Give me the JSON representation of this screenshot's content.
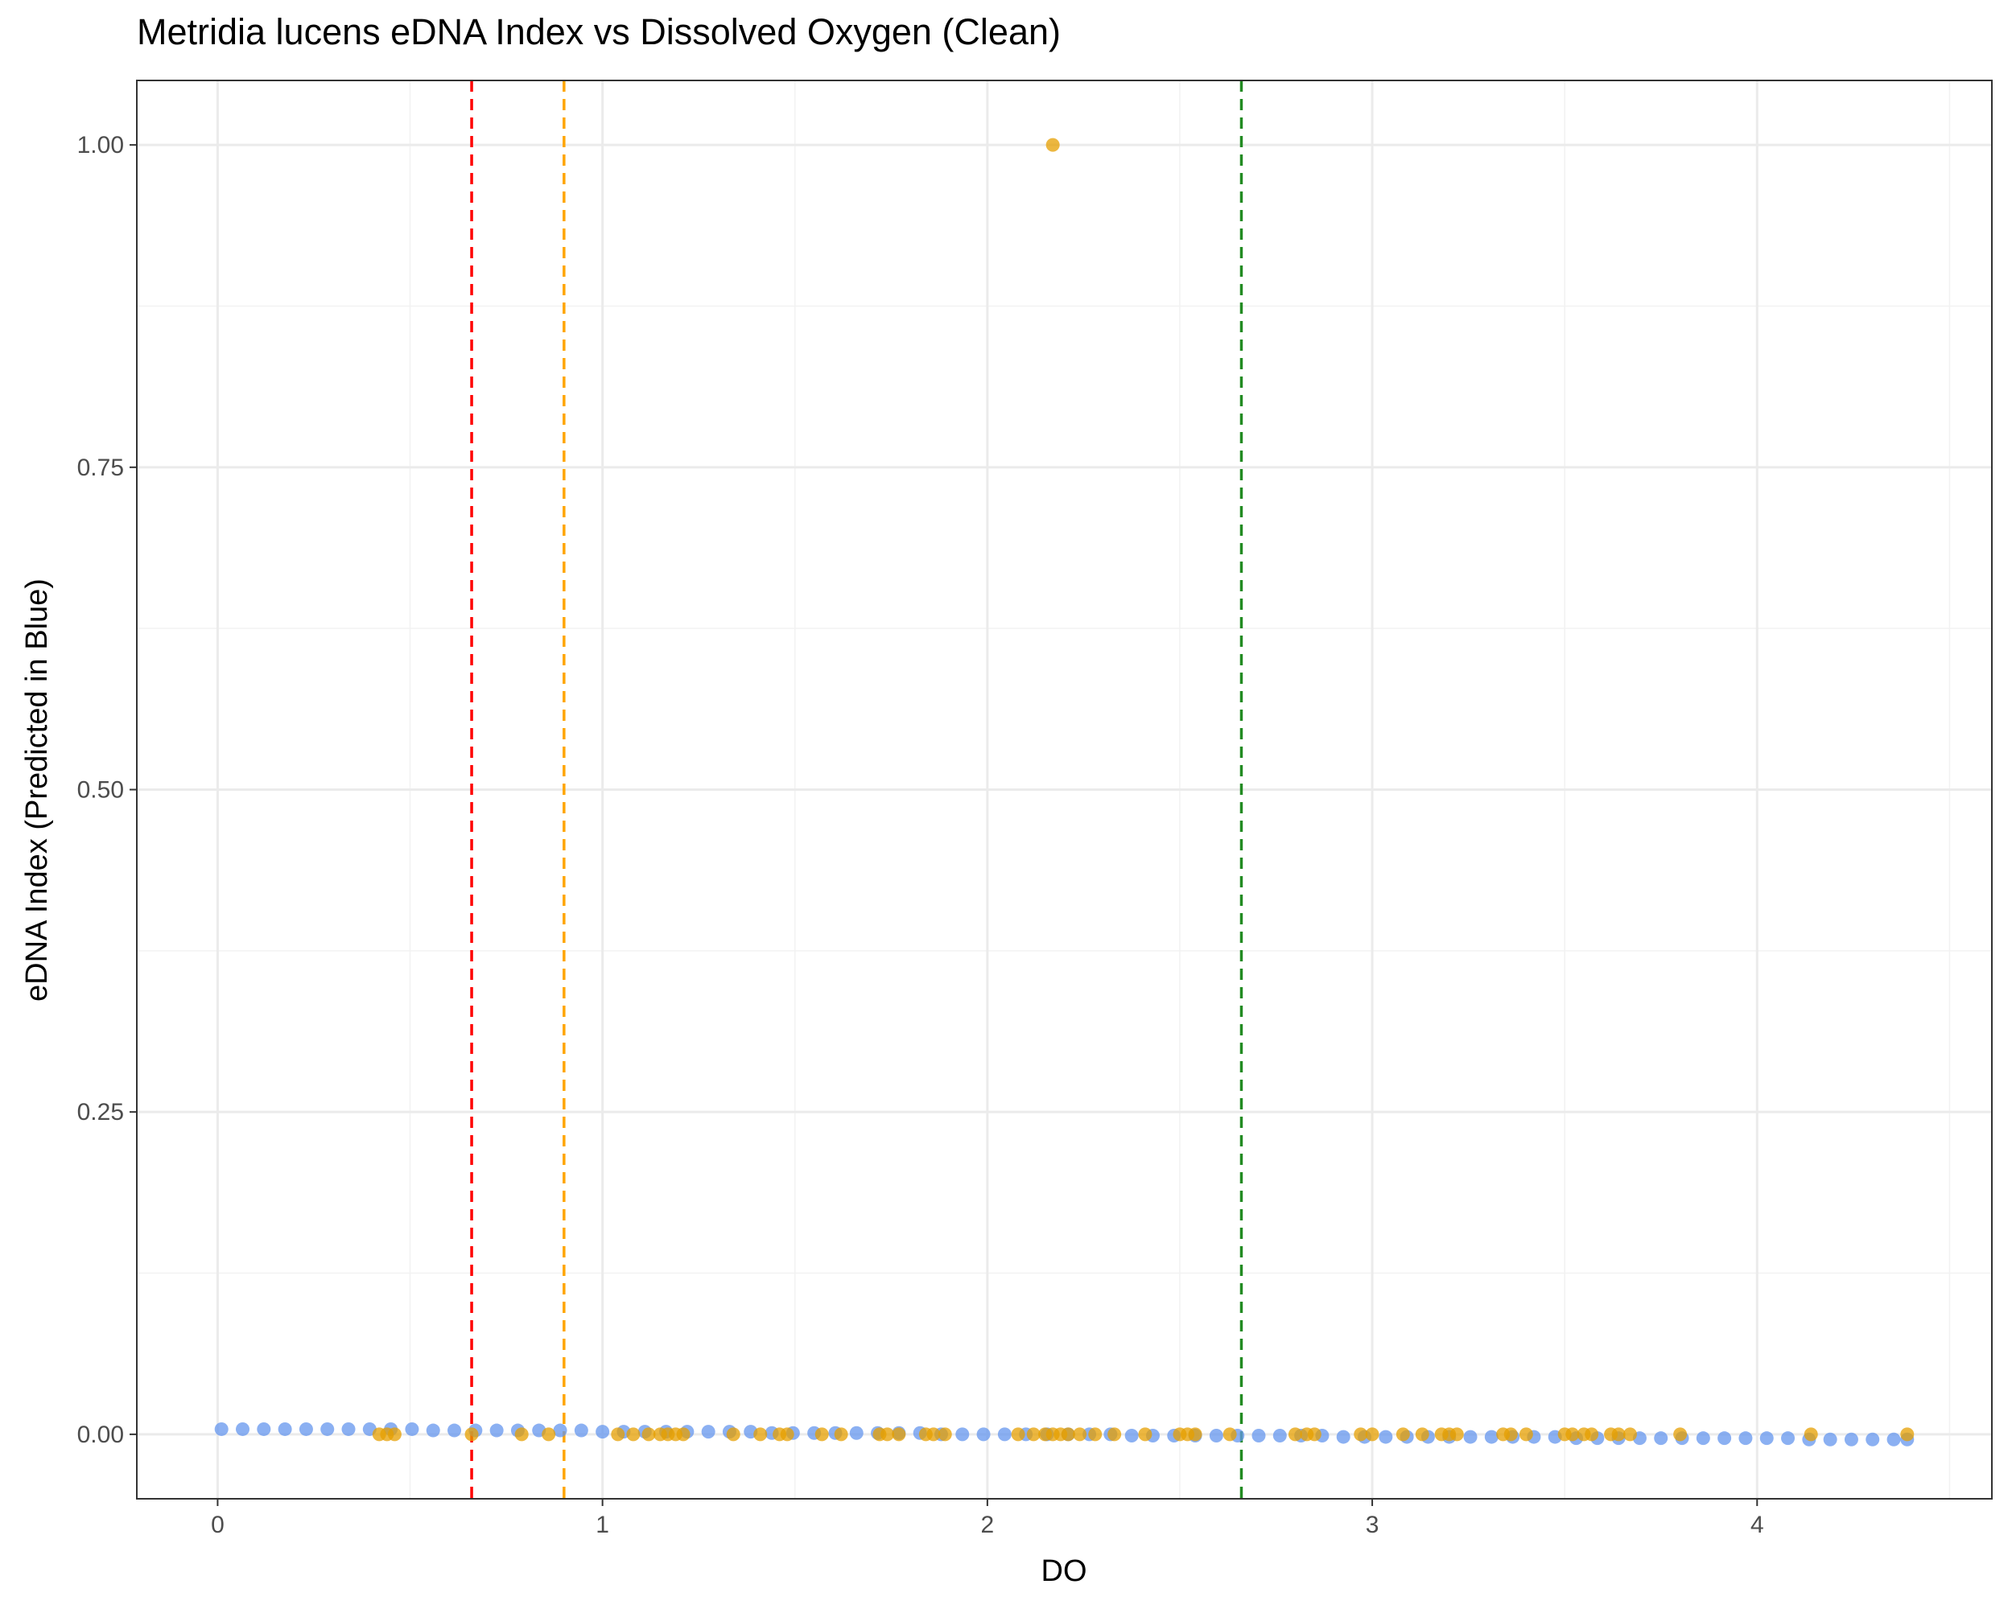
{
  "chart_data": {
    "type": "scatter",
    "title": "Metridia lucens eDNA Index vs Dissolved Oxygen (Clean)",
    "xlabel": "DO",
    "ylabel": "eDNA Index (Predicted in Blue)",
    "xlim": [
      -0.21,
      4.61
    ],
    "ylim": [
      -0.05,
      1.05
    ],
    "x_ticks": [
      0,
      1,
      2,
      3,
      4
    ],
    "x_tick_labels": [
      "0",
      "1",
      "2",
      "3",
      "4"
    ],
    "y_ticks": [
      0,
      0.25,
      0.5,
      0.75,
      1.0
    ],
    "y_tick_labels": [
      "0.00",
      "0.25",
      "0.50",
      "0.75",
      "1.00"
    ],
    "grid": true,
    "series": [
      {
        "color": "#6495ED",
        "x": [
          0.01,
          0.065,
          0.12,
          0.175,
          0.23,
          0.285,
          0.34,
          0.395,
          0.45,
          0.505,
          0.56,
          0.615,
          0.67,
          0.725,
          0.78,
          0.835,
          0.89,
          0.945,
          1.0,
          1.055,
          1.11,
          1.165,
          1.22,
          1.275,
          1.33,
          1.385,
          1.44,
          1.495,
          1.55,
          1.605,
          1.66,
          1.715,
          1.77,
          1.825,
          1.88,
          1.935,
          1.99,
          2.045,
          2.1,
          2.155,
          2.21,
          2.265,
          2.32,
          2.375,
          2.43,
          2.485,
          2.54,
          2.595,
          2.65,
          2.705,
          2.76,
          2.815,
          2.87,
          2.925,
          2.98,
          3.035,
          3.09,
          3.145,
          3.2,
          3.255,
          3.31,
          3.365,
          3.42,
          3.475,
          3.53,
          3.585,
          3.64,
          3.695,
          3.75,
          3.805,
          3.86,
          3.915,
          3.97,
          4.025,
          4.08,
          4.135,
          4.19,
          4.245,
          4.3,
          4.355,
          4.39
        ],
        "y": [
          0.004,
          0.004,
          0.004,
          0.004,
          0.004,
          0.004,
          0.004,
          0.004,
          0.004,
          0.004,
          0.003,
          0.003,
          0.003,
          0.003,
          0.003,
          0.003,
          0.003,
          0.003,
          0.002,
          0.002,
          0.002,
          0.002,
          0.002,
          0.002,
          0.002,
          0.002,
          0.001,
          0.001,
          0.001,
          0.001,
          0.001,
          0.001,
          0.001,
          0.001,
          0.0,
          0.0,
          0.0,
          0.0,
          0.0,
          0.0,
          0.0,
          0.0,
          0.0,
          -0.001,
          -0.001,
          -0.001,
          -0.001,
          -0.001,
          -0.001,
          -0.001,
          -0.001,
          -0.001,
          -0.001,
          -0.002,
          -0.002,
          -0.002,
          -0.002,
          -0.002,
          -0.002,
          -0.002,
          -0.002,
          -0.002,
          -0.002,
          -0.002,
          -0.003,
          -0.003,
          -0.003,
          -0.003,
          -0.003,
          -0.003,
          -0.003,
          -0.003,
          -0.003,
          -0.003,
          -0.003,
          -0.004,
          -0.004,
          -0.004,
          -0.004,
          -0.004,
          -0.004
        ]
      },
      {
        "color": "#E69F00",
        "x": [
          0.42,
          0.44,
          0.46,
          0.66,
          0.79,
          0.86,
          1.04,
          1.08,
          1.12,
          1.15,
          1.17,
          1.19,
          1.21,
          1.34,
          1.41,
          1.46,
          1.48,
          1.57,
          1.62,
          1.72,
          1.74,
          1.77,
          1.84,
          1.86,
          1.89,
          2.08,
          2.12,
          2.15,
          2.17,
          2.19,
          2.21,
          2.24,
          2.28,
          2.33,
          2.41,
          2.5,
          2.52,
          2.54,
          2.63,
          2.8,
          2.83,
          2.85,
          2.97,
          3.0,
          3.08,
          3.13,
          3.18,
          3.2,
          3.22,
          3.34,
          3.36,
          3.4,
          3.5,
          3.52,
          3.55,
          3.57,
          3.62,
          3.64,
          3.67,
          3.8,
          4.14,
          4.39,
          2.17
        ],
        "y": [
          0,
          0,
          0,
          0,
          0,
          0,
          0,
          0,
          0,
          0,
          0,
          0,
          0,
          0,
          0,
          0,
          0,
          0,
          0,
          0,
          0,
          0,
          0,
          0,
          0,
          0,
          0,
          0,
          0,
          0,
          0,
          0,
          0,
          0,
          0,
          0,
          0,
          0,
          0,
          0,
          0,
          0,
          0,
          0,
          0,
          0,
          0,
          0,
          0,
          0,
          0,
          0,
          0,
          0,
          0,
          0,
          0,
          0,
          0,
          0,
          0,
          0,
          1.0
        ]
      }
    ],
    "vlines": [
      {
        "x": 0.66,
        "color": "#FF0000"
      },
      {
        "x": 0.9,
        "color": "#FFA500"
      },
      {
        "x": 2.66,
        "color": "#228B22"
      }
    ]
  }
}
